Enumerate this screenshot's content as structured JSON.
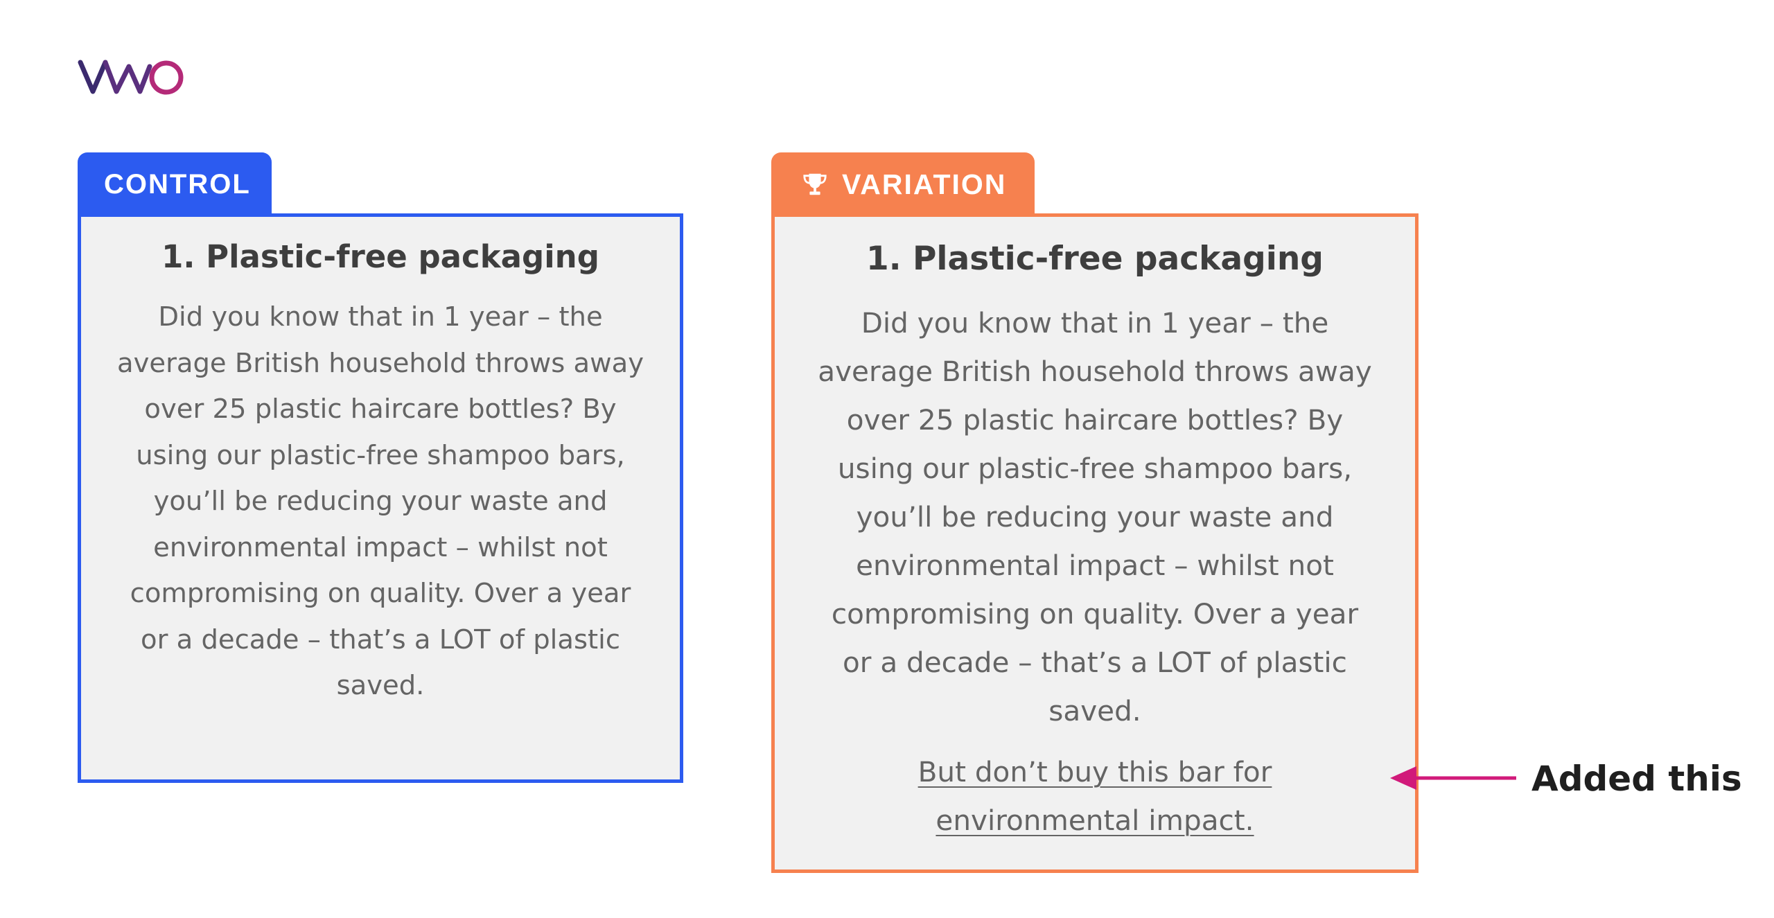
{
  "brand": {
    "logo_text": "VWO",
    "logo_icon": "vwo-logo-icon",
    "colors": {
      "logo_dark": "#3b2a6e",
      "logo_accent": "#b42a78"
    }
  },
  "control": {
    "tab_label": "CONTROL",
    "accent_color": "#2c5bf0",
    "title": "1. Plastic-free packaging",
    "body": "Did you know that in 1 year – the average British household throws away over 25 plastic haircare bottles? By using our plastic-free shampoo bars, you’ll be reducing your waste and environmental impact – whilst not compromising on quality. Over a year or a decade – that’s a LOT of plastic saved."
  },
  "variation": {
    "tab_label": "VARIATION",
    "tab_icon": "trophy-icon",
    "accent_color": "#f6814f",
    "title": "1. Plastic-free packaging",
    "body": "Did you know that in 1 year – the average British household throws away over 25 plastic haircare bottles? By using our plastic-free shampoo bars, you’ll be reducing your waste and environmental impact – whilst not compromising on quality. Over a year or a decade – that’s a LOT of plastic saved.",
    "added_line": "But don’t buy this bar for environmental impact."
  },
  "annotation": {
    "label": "Added this",
    "arrow_icon": "arrow-left-icon",
    "arrow_color": "#d11a7a"
  }
}
